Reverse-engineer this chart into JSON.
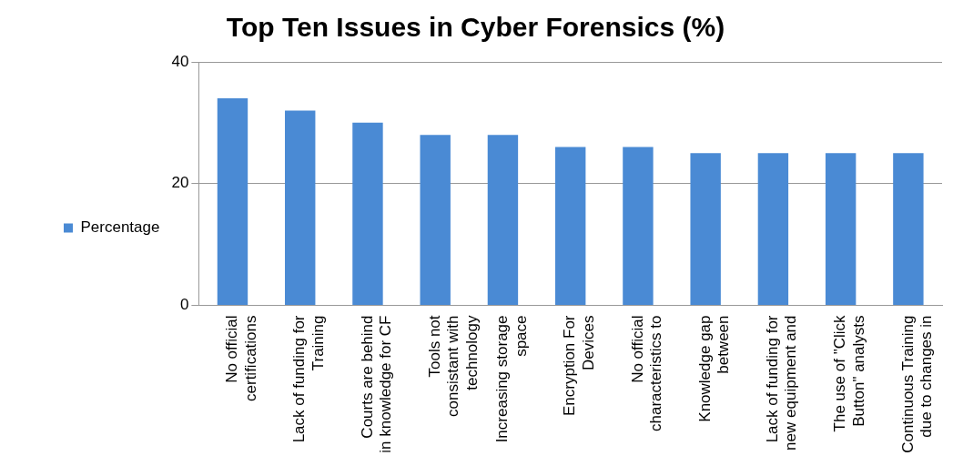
{
  "chart_data": {
    "type": "bar",
    "title": "Top Ten Issues in Cyber Forensics (%)",
    "categories": [
      "No official certifications",
      "Lack of funding for Training",
      "Courts are behind in knowledge for CF",
      "Tools not consistant with technology",
      "Increasing storage space",
      "Encryption For Devices",
      "No official characteristics to",
      "Knowledge gap between",
      "Lack of funding for new equipment and",
      "The use of \"Click Button\" analysts",
      "Continuous Training due to changes in"
    ],
    "series": [
      {
        "name": "Percentage",
        "color": "#4a8ad4",
        "values": [
          34,
          32,
          30,
          28,
          28,
          26,
          26,
          25,
          25,
          25,
          25
        ]
      }
    ],
    "ylim": [
      0,
      40
    ],
    "yticks": [
      0,
      20,
      40
    ],
    "grid": "y",
    "legend": "left"
  }
}
